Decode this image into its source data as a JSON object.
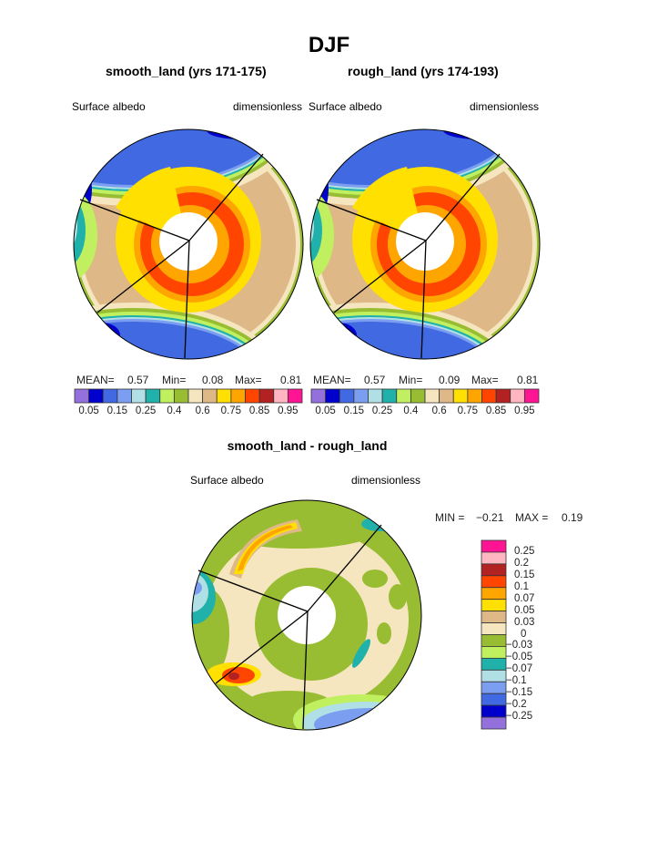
{
  "title": "DJF",
  "panels": [
    {
      "subtitle": "smooth_land (yrs 171-175)",
      "left_label": "Surface albedo",
      "right_label": "dimensionless",
      "stats": {
        "mean_label": "MEAN=",
        "mean": "0.57",
        "min_label": "Min=",
        "min": "0.08",
        "max_label": "Max=",
        "max": "0.81"
      }
    },
    {
      "subtitle": "rough_land (yrs 174-193)",
      "left_label": "Surface albedo",
      "right_label": "dimensionless",
      "stats": {
        "mean_label": "MEAN=",
        "mean": "0.57",
        "min_label": "Min=",
        "min": "0.09",
        "max_label": "Max=",
        "max": "0.81"
      }
    }
  ],
  "abs_colorbar": {
    "colors": [
      "#9370DB",
      "#0000CD",
      "#4169E1",
      "#7B9EF0",
      "#B0E0E6",
      "#20B2AA",
      "#C0F060",
      "#98BD32",
      "#F5E6C0",
      "#DEB887",
      "#FFE000",
      "#FFA500",
      "#FF4500",
      "#B22222",
      "#FFB6C1",
      "#FF1493"
    ],
    "labels": [
      "0.05",
      "0.15",
      "0.25",
      "0.4",
      "0.6",
      "0.75",
      "0.85",
      "0.95"
    ]
  },
  "diff_panel": {
    "subtitle": "smooth_land - rough_land",
    "left_label": "Surface albedo",
    "right_label": "dimensionless",
    "min_label": "MIN =",
    "min": "−0.21",
    "max_label": "MAX =",
    "max": "0.19",
    "colorbar": {
      "colors_top_to_bottom": [
        "#FF1493",
        "#FFB6C1",
        "#B22222",
        "#FF4500",
        "#FFA500",
        "#FFE000",
        "#DEB887",
        "#F5E6C0",
        "#98BD32",
        "#C0F060",
        "#20B2AA",
        "#B0E0E6",
        "#7B9EF0",
        "#4169E1",
        "#0000CD",
        "#9370DB"
      ],
      "labels_top_to_bottom": [
        "0.25",
        "0.2",
        "0.15",
        "0.1",
        "0.07",
        "0.05",
        "0.03",
        "0",
        "−0.03",
        "−0.05",
        "−0.07",
        "−0.1",
        "−0.15",
        "−0.2",
        "−0.25"
      ]
    }
  }
}
